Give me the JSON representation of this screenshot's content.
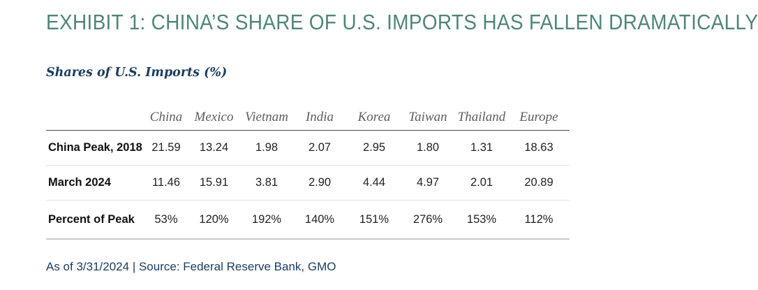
{
  "exhibit": {
    "title": "EXHIBIT 1: CHINA’S SHARE OF U.S. IMPORTS HAS FALLEN DRAMATICALLY",
    "subtitle": "Shares of U.S. Imports (%)"
  },
  "table": {
    "columns": [
      "",
      "China",
      "Mexico",
      "Vietnam",
      "India",
      "Korea",
      "Taiwan",
      "Thailand",
      "Europe"
    ],
    "rows": [
      {
        "label": "China Peak, 2018",
        "values": [
          "21.59",
          "13.24",
          "1.98",
          "2.07",
          "2.95",
          "1.80",
          "1.31",
          "18.63"
        ]
      },
      {
        "label": "March 2024",
        "values": [
          "11.46",
          "15.91",
          "3.81",
          "2.90",
          "4.44",
          "4.97",
          "2.01",
          "20.89"
        ]
      },
      {
        "label": "Percent of Peak",
        "values": [
          "53%",
          "120%",
          "192%",
          "140%",
          "151%",
          "276%",
          "153%",
          "112%"
        ]
      }
    ]
  },
  "footnote": "As of 3/31/2024 | Source: Federal Reserve Bank, GMO",
  "colors": {
    "title": "#4f8577",
    "subtitle": "#1c3d60",
    "footnote": "#1c3d60"
  }
}
